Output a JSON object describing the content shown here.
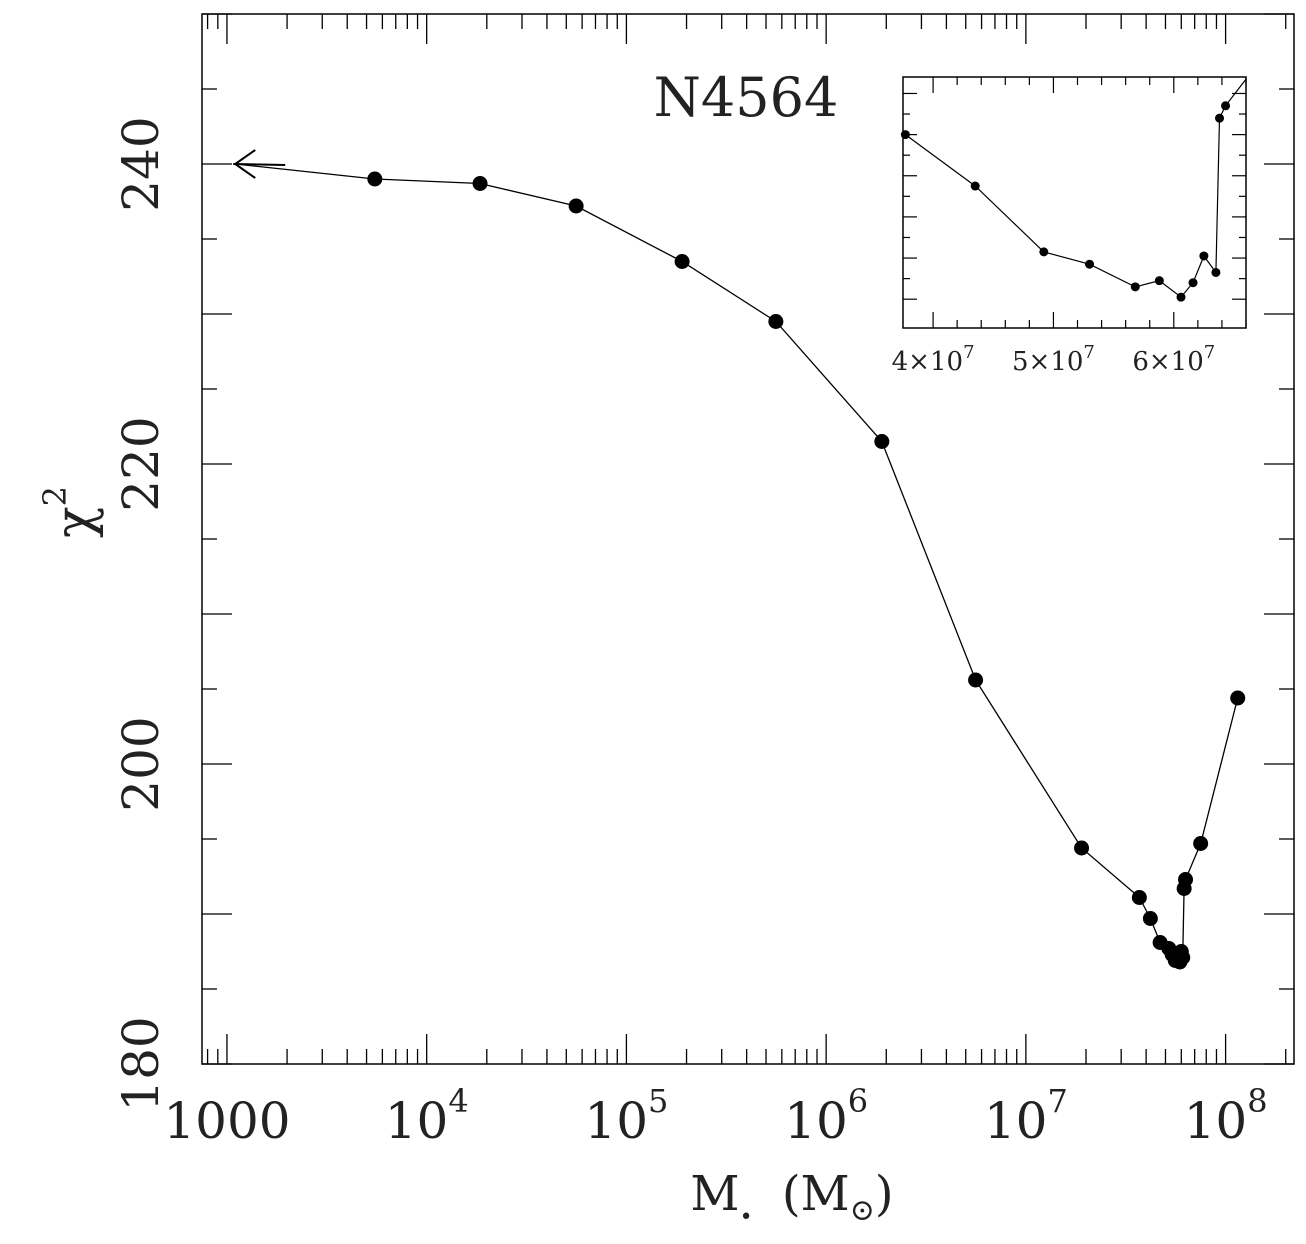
{
  "chart_data": {
    "type": "line",
    "title": "N4564",
    "xlabel": {
      "symbol": "M",
      "subscript": "•",
      "unit": "(M",
      "unit_sub": "⊙",
      "unit_close": ")"
    },
    "ylabel": {
      "base": "χ",
      "sup": "2"
    },
    "x_scale": "log",
    "xlim": [
      750,
      220000000
    ],
    "ylim": [
      180,
      250
    ],
    "x_tick_labels": [
      {
        "value": 1000,
        "base": "1000",
        "exp": ""
      },
      {
        "value": 10000,
        "base": "10",
        "exp": "4"
      },
      {
        "value": 100000,
        "base": "10",
        "exp": "5"
      },
      {
        "value": 1000000,
        "base": "10",
        "exp": "6"
      },
      {
        "value": 10000000,
        "base": "10",
        "exp": "7"
      },
      {
        "value": 100000000,
        "base": "10",
        "exp": "8"
      }
    ],
    "y_tick_labels": [
      {
        "value": 180,
        "label": "180"
      },
      {
        "value": 200,
        "label": "200"
      },
      {
        "value": 220,
        "label": "220"
      },
      {
        "value": 240,
        "label": "240"
      }
    ],
    "upper_limit_arrow": {
      "x": 1100,
      "y": 240.0
    },
    "series": [
      {
        "x": [
          1100,
          5500,
          18500,
          56000,
          190000,
          560000,
          1900000,
          5600000,
          19000000,
          37000000,
          42000000,
          47000000,
          52000000,
          54000000,
          56000000,
          58000000,
          59000000,
          60000000,
          61000000,
          62000000,
          63000000,
          75000000,
          115000000
        ],
        "y": [
          240.0,
          239.0,
          238.7,
          237.2,
          233.5,
          229.5,
          221.5,
          205.6,
          194.4,
          191.1,
          189.7,
          188.1,
          187.7,
          187.3,
          186.9,
          187.2,
          186.8,
          187.5,
          187.1,
          191.7,
          192.3,
          194.7,
          204.4
        ],
        "markers": [
          false,
          true,
          true,
          true,
          true,
          true,
          true,
          true,
          true,
          true,
          true,
          true,
          true,
          true,
          true,
          true,
          true,
          true,
          true,
          true,
          true,
          true,
          true
        ]
      }
    ],
    "inset": {
      "xlim": [
        37500000,
        66000000
      ],
      "x_tick_labels": [
        {
          "value": 40000000,
          "base": "4×10",
          "exp": "7"
        },
        {
          "value": 50000000,
          "base": "5×10",
          "exp": "7"
        },
        {
          "value": 60000000,
          "base": "6×10",
          "exp": "7"
        }
      ],
      "ylim": [
        186.3,
        192.4
      ],
      "x": [
        37700000,
        43500000,
        49200000,
        53000000,
        56800000,
        58800000,
        60600000,
        61600000,
        62500000,
        63500000,
        63800000,
        64300000,
        66000000
      ],
      "y": [
        191.0,
        189.75,
        188.15,
        187.85,
        187.3,
        187.45,
        187.05,
        187.4,
        188.05,
        187.65,
        191.4,
        191.7,
        192.35
      ],
      "markers": [
        true,
        true,
        true,
        true,
        true,
        true,
        true,
        true,
        true,
        true,
        true,
        true,
        false
      ]
    }
  }
}
